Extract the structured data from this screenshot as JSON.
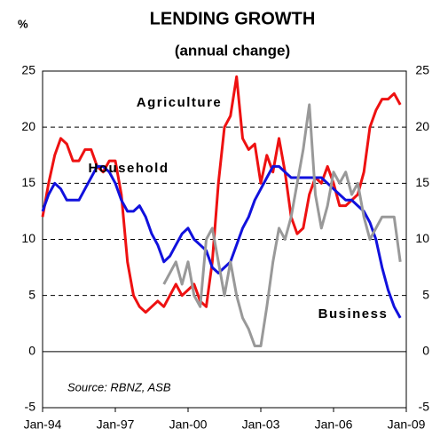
{
  "chart_data": {
    "type": "line",
    "title": "LENDING GROWTH",
    "subtitle": "(annual change)",
    "y_label": "%",
    "annotation": "Source: RBNZ, ASB",
    "x": [
      "Jan-94",
      "Apr-94",
      "Jul-94",
      "Oct-94",
      "Jan-95",
      "Apr-95",
      "Jul-95",
      "Oct-95",
      "Jan-96",
      "Apr-96",
      "Jul-96",
      "Oct-96",
      "Jan-97",
      "Apr-97",
      "Jul-97",
      "Oct-97",
      "Jan-98",
      "Apr-98",
      "Jul-98",
      "Oct-98",
      "Jan-99",
      "Apr-99",
      "Jul-99",
      "Oct-99",
      "Jan-00",
      "Apr-00",
      "Jul-00",
      "Oct-00",
      "Jan-01",
      "Apr-01",
      "Jul-01",
      "Oct-01",
      "Jan-02",
      "Apr-02",
      "Jul-02",
      "Oct-02",
      "Jan-03",
      "Apr-03",
      "Jul-03",
      "Oct-03",
      "Jan-04",
      "Apr-04",
      "Jul-04",
      "Oct-04",
      "Jan-05",
      "Apr-05",
      "Jul-05",
      "Oct-05",
      "Jan-06",
      "Apr-06",
      "Jul-06",
      "Oct-06",
      "Jan-07",
      "Apr-07",
      "Jul-07",
      "Oct-07",
      "Jan-08",
      "Apr-08",
      "Jul-08",
      "Oct-08"
    ],
    "series": [
      {
        "name": "Agriculture",
        "color": "#ee1111",
        "values": [
          12,
          15,
          17.5,
          19,
          18.5,
          17,
          17,
          18,
          18,
          16.5,
          16,
          17,
          17,
          14,
          8,
          5,
          4,
          3.5,
          4,
          4.5,
          4,
          5,
          6,
          5,
          5.5,
          6,
          4.5,
          4,
          8,
          15,
          20,
          21,
          24.5,
          19,
          18,
          18.5,
          15,
          17.5,
          16,
          19,
          16,
          12,
          10.5,
          11,
          14,
          15.5,
          15,
          16.5,
          15,
          13,
          13,
          13.5,
          14,
          16,
          20,
          21.5,
          22.5,
          22.5,
          23,
          22
        ]
      },
      {
        "name": "Household",
        "color": "#1111dd",
        "values": [
          12.5,
          14,
          15,
          14.5,
          13.5,
          13.5,
          13.5,
          14.5,
          15.5,
          16.5,
          16.5,
          16,
          15,
          13.5,
          12.5,
          12.5,
          13,
          12,
          10.5,
          9.5,
          8,
          8.5,
          9.5,
          10.5,
          11,
          10,
          9.5,
          9,
          7.5,
          7,
          7.5,
          8,
          9.5,
          11,
          12,
          13.5,
          14.5,
          15.5,
          16.5,
          16.5,
          16,
          15.5,
          15.5,
          15.5,
          15.5,
          15.5,
          15.5,
          15,
          14.5,
          14,
          13.5,
          13.5,
          13,
          12.5,
          11.5,
          10,
          7.5,
          5.5,
          4,
          3
        ]
      },
      {
        "name": "Business",
        "color": "#999999",
        "values": [
          null,
          null,
          null,
          null,
          null,
          null,
          null,
          null,
          null,
          null,
          null,
          null,
          null,
          null,
          null,
          null,
          null,
          null,
          null,
          null,
          6,
          7,
          8,
          6,
          8,
          5,
          4,
          10,
          11,
          8,
          5,
          8,
          5,
          3,
          2,
          0.5,
          0.5,
          4,
          8,
          11,
          10,
          12,
          15,
          18,
          22,
          14,
          11,
          13,
          16,
          15,
          16,
          14,
          15,
          12,
          10,
          11,
          12,
          12,
          12,
          8
        ]
      }
    ],
    "xlim": [
      "Jan-94",
      "Jan-09"
    ],
    "xticks": [
      "Jan-94",
      "Jan-97",
      "Jan-00",
      "Jan-03",
      "Jan-06",
      "Jan-09"
    ],
    "ylim": [
      -5,
      25
    ],
    "yticks": [
      -5,
      0,
      5,
      10,
      15,
      20,
      25
    ],
    "grid": true
  }
}
